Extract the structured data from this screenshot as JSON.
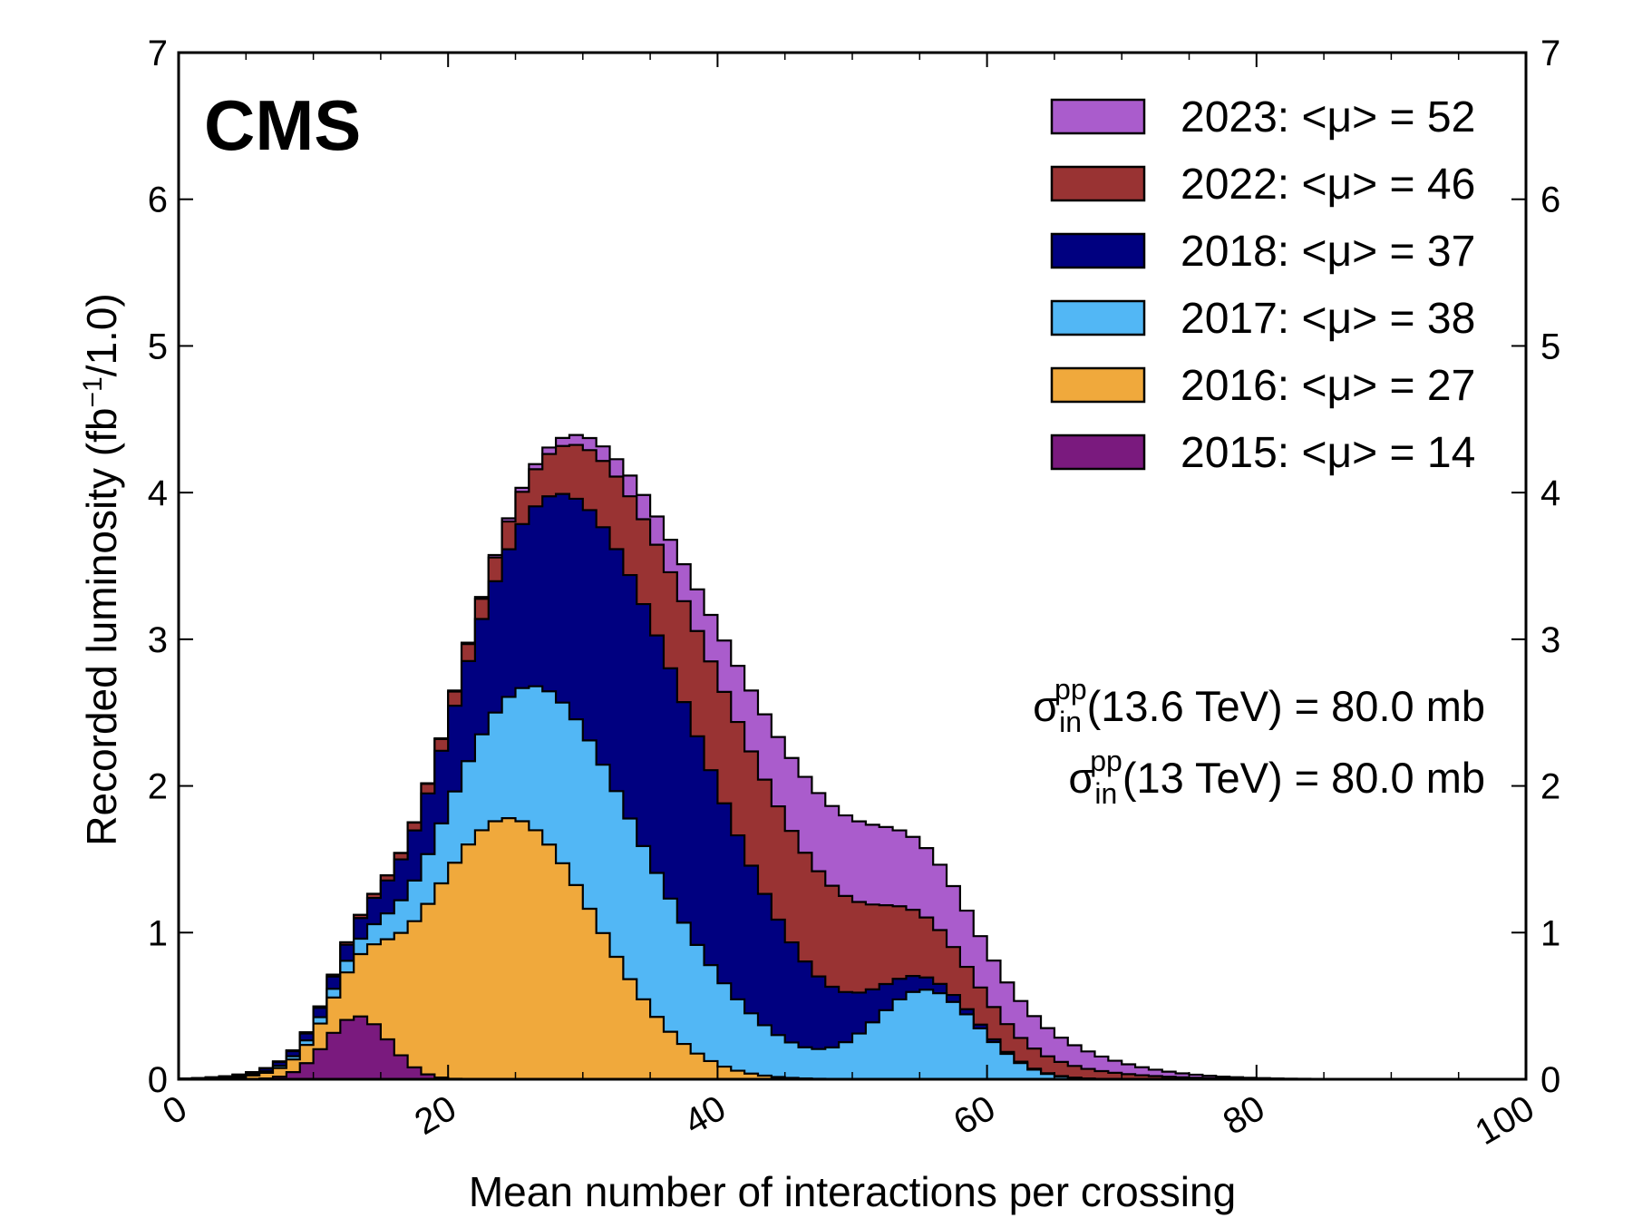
{
  "chart_data": {
    "type": "area",
    "style": "stacked-step-histogram",
    "experiment_label": "CMS",
    "xlabel": "Mean number of interactions per crossing",
    "ylabel_main": "Recorded luminosity (fb",
    "ylabel_sup": "−1",
    "ylabel_tail": "/1.0)",
    "xlim": [
      0,
      100
    ],
    "ylim": [
      0,
      7
    ],
    "x_ticks": [
      0,
      20,
      40,
      60,
      80,
      100
    ],
    "x_tick_labels": [
      "0",
      "20",
      "40",
      "60",
      "80",
      "100"
    ],
    "y_ticks": [
      0,
      1,
      2,
      3,
      4,
      5,
      6,
      7
    ],
    "y_tick_labels": [
      "0",
      "1",
      "2",
      "3",
      "4",
      "5",
      "6",
      "7"
    ],
    "grid": false,
    "legend_position": "top-right",
    "bin_width": 1.0,
    "series": [
      {
        "name": "2015: <μ> = 14",
        "color": "#7a1a7e",
        "kind": "gauss",
        "peaks": [
          {
            "mu": 13.3,
            "sigma": 2.3,
            "a": 0.43
          }
        ]
      },
      {
        "name": "2016: <μ> = 27",
        "color": "#f0a93c",
        "kind": "gauss",
        "peaks": [
          {
            "mu": 24.5,
            "sigma": 6.5,
            "a": 1.78
          }
        ]
      },
      {
        "name": "2017: <μ> = 38",
        "color": "#52b7f5",
        "kind": "gauss",
        "peaks": [
          {
            "mu": 31.0,
            "sigma": 8.0,
            "a": 1.15
          },
          {
            "mu": 55.5,
            "sigma": 3.8,
            "a": 0.6
          }
        ]
      },
      {
        "name": "2018: <μ> = 37",
        "color": "#000080",
        "kind": "gauss",
        "peaks": [
          {
            "mu": 33.5,
            "sigma": 9.0,
            "a": 1.66
          }
        ]
      },
      {
        "name": "2022: <μ> = 46",
        "color": "#993333",
        "kind": "gauss",
        "peaks": [
          {
            "mu": 43.0,
            "sigma": 11.0,
            "a": 0.78
          }
        ]
      },
      {
        "name": "2023: <μ> = 52",
        "color": "#aa5ccc",
        "kind": "gauss",
        "peaks": [
          {
            "mu": 50.0,
            "sigma": 10.0,
            "a": 0.55
          }
        ]
      }
    ],
    "legend_order": [
      "2023: <μ> = 52",
      "2022: <μ> = 46",
      "2018: <μ> = 37",
      "2017: <μ> = 38",
      "2016: <μ> = 27",
      "2015: <μ> = 14"
    ],
    "annotations": [
      {
        "prefix": "σ",
        "sup": "pp",
        "sub": "in",
        "text": "(13.6 TeV) = 80.0 mb"
      },
      {
        "prefix": "σ",
        "sup": "pp",
        "sub": "in",
        "text": "(13 TeV) = 80.0 mb"
      }
    ]
  }
}
